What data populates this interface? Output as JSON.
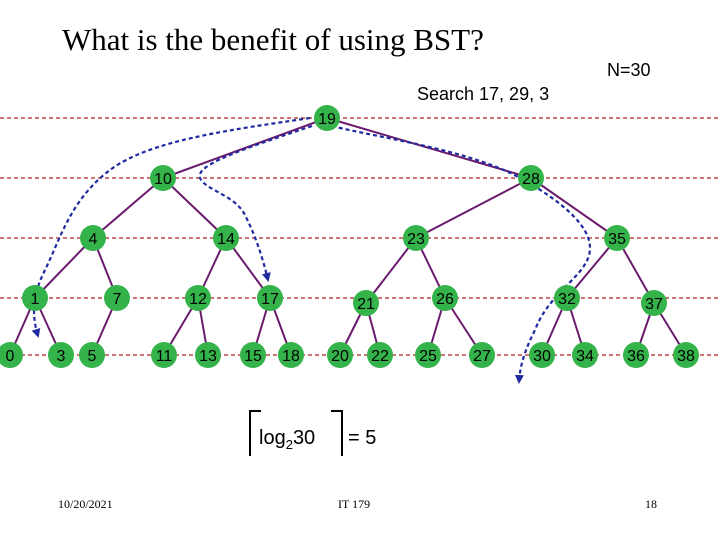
{
  "slide": {
    "title": "What is the benefit of using BST?",
    "n_label": "N=30",
    "search_label": "Search 17, 29, 3",
    "formula": {
      "log_text": "log",
      "log_base": "2",
      "log_arg": "30",
      "result": "= 5"
    },
    "footer": {
      "date": "10/20/2021",
      "course": "IT 179",
      "page": "18"
    }
  },
  "tree": {
    "node_color": "#33b34a",
    "edge_color": "#6a1b6e",
    "level_line_color": "#b22222",
    "search_path_color": "#1f2aa0",
    "nodes": [
      {
        "id": "n19",
        "label": "19",
        "parent": null
      },
      {
        "id": "n10",
        "label": "10",
        "parent": "n19"
      },
      {
        "id": "n28",
        "label": "28",
        "parent": "n19"
      },
      {
        "id": "n4",
        "label": "4",
        "parent": "n10"
      },
      {
        "id": "n14",
        "label": "14",
        "parent": "n10"
      },
      {
        "id": "n23",
        "label": "23",
        "parent": "n28"
      },
      {
        "id": "n35",
        "label": "35",
        "parent": "n28"
      },
      {
        "id": "n1",
        "label": "1",
        "parent": "n4"
      },
      {
        "id": "n7",
        "label": "7",
        "parent": "n4"
      },
      {
        "id": "n12",
        "label": "12",
        "parent": "n14"
      },
      {
        "id": "n17",
        "label": "17",
        "parent": "n14"
      },
      {
        "id": "n21",
        "label": "21",
        "parent": "n23"
      },
      {
        "id": "n26",
        "label": "26",
        "parent": "n23"
      },
      {
        "id": "n32",
        "label": "32",
        "parent": "n35"
      },
      {
        "id": "n37",
        "label": "37",
        "parent": "n35"
      },
      {
        "id": "n0",
        "label": "0",
        "parent": "n1"
      },
      {
        "id": "n3",
        "label": "3",
        "parent": "n1"
      },
      {
        "id": "n5",
        "label": "5",
        "parent": "n7"
      },
      {
        "id": "n11",
        "label": "11",
        "parent": "n12"
      },
      {
        "id": "n13",
        "label": "13",
        "parent": "n12"
      },
      {
        "id": "n15",
        "label": "15",
        "parent": "n17"
      },
      {
        "id": "n18",
        "label": "18",
        "parent": "n17"
      },
      {
        "id": "n20",
        "label": "20",
        "parent": "n21"
      },
      {
        "id": "n22",
        "label": "22",
        "parent": "n21"
      },
      {
        "id": "n25",
        "label": "25",
        "parent": "n26"
      },
      {
        "id": "n27",
        "label": "27",
        "parent": "n26"
      },
      {
        "id": "n30",
        "label": "30",
        "parent": "n32"
      },
      {
        "id": "n34",
        "label": "34",
        "parent": "n32"
      },
      {
        "id": "n36",
        "label": "36",
        "parent": "n37"
      },
      {
        "id": "n38",
        "label": "38",
        "parent": "n37"
      }
    ]
  }
}
